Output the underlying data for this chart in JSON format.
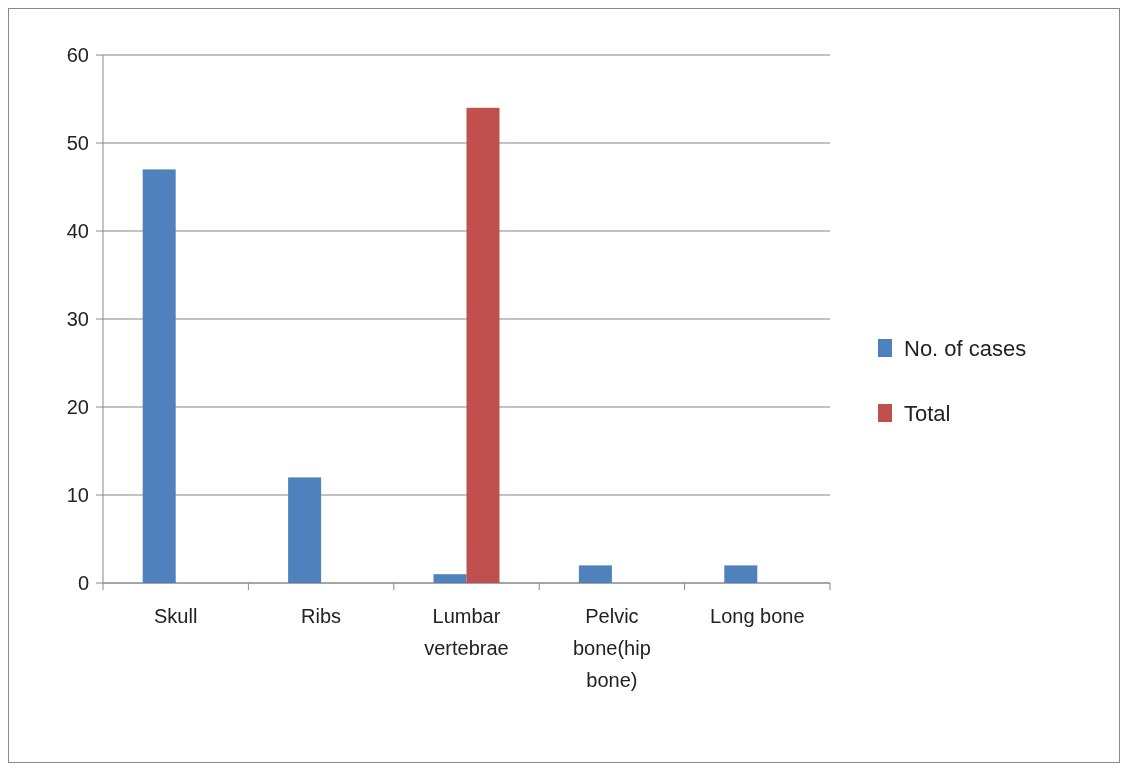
{
  "chart_data": {
    "type": "bar",
    "categories": [
      "Skull",
      "Ribs",
      "Lumbar vertebrae",
      "Pelvic bone(hip bone)",
      "Long bone"
    ],
    "series": [
      {
        "name": "No. of cases",
        "color": "#4f81bd",
        "values": [
          47,
          12,
          1,
          2,
          2
        ]
      },
      {
        "name": "Total",
        "color": "#c0504d",
        "values": [
          null,
          null,
          54,
          null,
          null
        ]
      }
    ],
    "ylim": [
      0,
      60
    ],
    "yticks": [
      0,
      10,
      20,
      30,
      40,
      50,
      60
    ],
    "grid": "y",
    "legend": "right"
  }
}
